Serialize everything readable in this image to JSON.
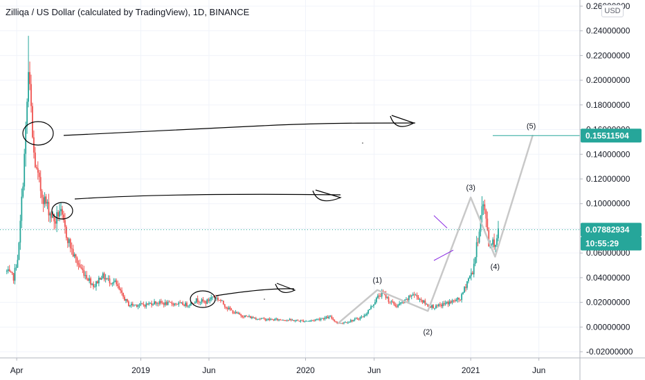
{
  "header": {
    "title": "Zilliqa / US Dollar (calculated by TradingView), 1D, BINANCE",
    "currency": "USD"
  },
  "price_tags": {
    "target": "0.15511504",
    "last": "0.07882934",
    "countdown": "10:55:29"
  },
  "chart_data": {
    "type": "candlestick",
    "title": "Zilliqa / US Dollar (calculated by TradingView), 1D, BINANCE",
    "y_axis": {
      "ylim": [
        -0.025,
        0.265
      ],
      "ticks": [
        "0.26000000",
        "0.24000000",
        "0.22000000",
        "0.20000000",
        "0.18000000",
        "0.16000000",
        "0.14000000",
        "0.12000000",
        "0.10000000",
        "0.08000000",
        "0.06000000",
        "0.04000000",
        "0.02000000",
        "0.00000000",
        "-0.02000000"
      ],
      "position": "right"
    },
    "x_axis": {
      "ticks": [
        "Apr",
        "2019",
        "Jun",
        "2020",
        "Jun",
        "2021",
        "Jun"
      ]
    },
    "price_series": [
      [
        "2018-03-10",
        0.045
      ],
      [
        "2018-03-25",
        0.04
      ],
      [
        "2018-04-05",
        0.06
      ],
      [
        "2018-04-10",
        0.09
      ],
      [
        "2018-04-20",
        0.15
      ],
      [
        "2018-04-27",
        0.205
      ],
      [
        "2018-05-03",
        0.175
      ],
      [
        "2018-05-07",
        0.145
      ],
      [
        "2018-05-15",
        0.125
      ],
      [
        "2018-05-25",
        0.11
      ],
      [
        "2018-06-05",
        0.1
      ],
      [
        "2018-06-15",
        0.092
      ],
      [
        "2018-06-25",
        0.085
      ],
      [
        "2018-07-05",
        0.095
      ],
      [
        "2018-07-20",
        0.075
      ],
      [
        "2018-08-05",
        0.058
      ],
      [
        "2018-08-20",
        0.048
      ],
      [
        "2018-09-05",
        0.04
      ],
      [
        "2018-09-20",
        0.033
      ],
      [
        "2018-10-05",
        0.042
      ],
      [
        "2018-10-20",
        0.038
      ],
      [
        "2018-11-05",
        0.036
      ],
      [
        "2018-11-20",
        0.026
      ],
      [
        "2018-12-05",
        0.018
      ],
      [
        "2018-12-20",
        0.018
      ],
      [
        "2019-01-10",
        0.018
      ],
      [
        "2019-02-01",
        0.02
      ],
      [
        "2019-02-25",
        0.019
      ],
      [
        "2019-03-20",
        0.019
      ],
      [
        "2019-04-15",
        0.018
      ],
      [
        "2019-05-05",
        0.022
      ],
      [
        "2019-05-25",
        0.02
      ],
      [
        "2019-06-10",
        0.025
      ],
      [
        "2019-06-25",
        0.022
      ],
      [
        "2019-07-10",
        0.016
      ],
      [
        "2019-07-25",
        0.012
      ],
      [
        "2019-08-15",
        0.009
      ],
      [
        "2019-09-15",
        0.007
      ],
      [
        "2019-10-15",
        0.006
      ],
      [
        "2019-11-15",
        0.006
      ],
      [
        "2019-12-15",
        0.005
      ],
      [
        "2020-01-10",
        0.005
      ],
      [
        "2020-02-05",
        0.007
      ],
      [
        "2020-02-25",
        0.008
      ],
      [
        "2020-03-13",
        0.003
      ],
      [
        "2020-03-30",
        0.004
      ],
      [
        "2020-04-20",
        0.006
      ],
      [
        "2020-05-10",
        0.009
      ],
      [
        "2020-05-25",
        0.016
      ],
      [
        "2020-06-08",
        0.024
      ],
      [
        "2020-06-20",
        0.028
      ],
      [
        "2020-07-05",
        0.021
      ],
      [
        "2020-07-20",
        0.017
      ],
      [
        "2020-08-10",
        0.021
      ],
      [
        "2020-08-25",
        0.027
      ],
      [
        "2020-09-10",
        0.023
      ],
      [
        "2020-09-25",
        0.018
      ],
      [
        "2020-10-15",
        0.016
      ],
      [
        "2020-11-05",
        0.019
      ],
      [
        "2020-11-25",
        0.021
      ],
      [
        "2020-12-10",
        0.023
      ],
      [
        "2020-12-25",
        0.038
      ],
      [
        "2021-01-05",
        0.045
      ],
      [
        "2021-01-12",
        0.06
      ],
      [
        "2021-01-20",
        0.08
      ],
      [
        "2021-01-27",
        0.1
      ],
      [
        "2021-02-01",
        0.092
      ],
      [
        "2021-02-06",
        0.085
      ],
      [
        "2021-02-11",
        0.063
      ],
      [
        "2021-02-17",
        0.072
      ],
      [
        "2021-02-23",
        0.066
      ],
      [
        "2021-03-01",
        0.075
      ],
      [
        "2021-03-05",
        0.079
      ]
    ],
    "annotations": {
      "wave_labels": [
        {
          "text": "(1)",
          "x": "2020-06-08",
          "y": 0.036
        },
        {
          "text": "(2)",
          "x": "2020-09-28",
          "y": -0.006
        },
        {
          "text": "(3)",
          "x": "2021-01-01",
          "y": 0.111
        },
        {
          "text": "(4)",
          "x": "2021-02-24",
          "y": 0.047
        },
        {
          "text": "(5)",
          "x": "2021-05-15",
          "y": 0.161
        }
      ],
      "wave_path": [
        [
          "2020-03-13",
          0.003
        ],
        [
          "2020-06-08",
          0.03
        ],
        [
          "2020-09-28",
          0.013
        ],
        [
          "2021-01-01",
          0.105
        ],
        [
          "2021-02-24",
          0.057
        ],
        [
          "2021-05-18",
          0.155
        ]
      ],
      "horizontal_line": 0.15511504
    }
  },
  "colors": {
    "up": "#26a69a",
    "down": "#ef5350",
    "grid": "#f0f3fa",
    "axis_text": "#131722",
    "accent": "#26a69a",
    "wave": "#c8c8c8",
    "drawing": "#000000",
    "pivot": "#8a2be2"
  }
}
